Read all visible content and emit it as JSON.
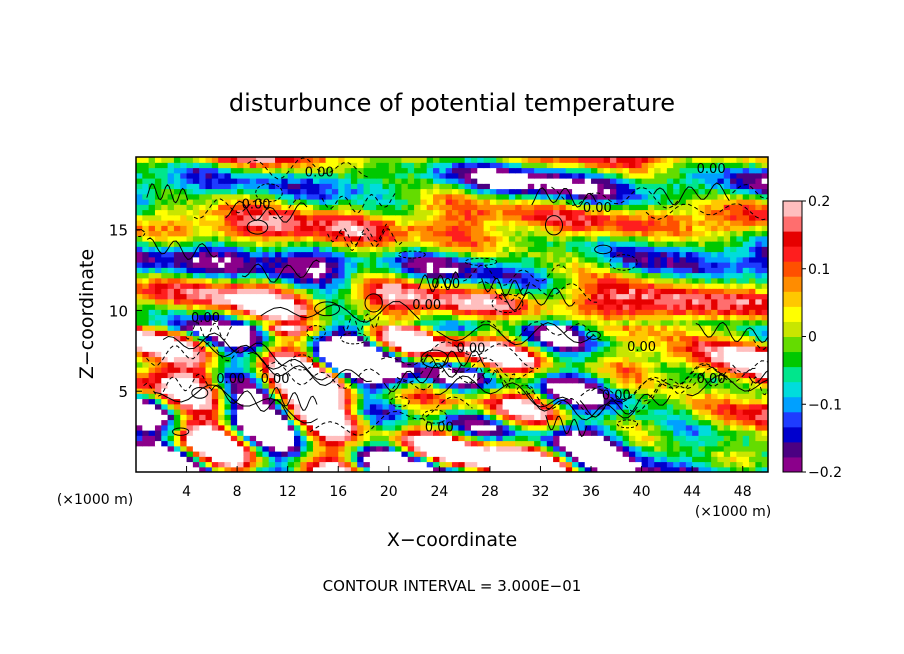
{
  "chart_data": {
    "type": "heatmap",
    "title": "disturbunce of potential temperature",
    "xlabel": "X−coordinate",
    "ylabel": "Z−coordinate",
    "x_unit": "(×1000 m)",
    "z_unit": "(×1000 m)",
    "x_ticks": [
      4,
      8,
      12,
      16,
      20,
      24,
      28,
      32,
      36,
      40,
      44,
      48
    ],
    "z_ticks": [
      5,
      10,
      15
    ],
    "xlim": [
      0,
      50
    ],
    "zlim": [
      0,
      19.5
    ],
    "colorbar": {
      "vmin": -0.2,
      "vmax": 0.2,
      "ticks": [
        {
          "value": 0.2,
          "label": "0.2"
        },
        {
          "value": 0.1,
          "label": "0.1"
        },
        {
          "value": 0,
          "label": "0"
        },
        {
          "value": -0.1,
          "label": "−0.1"
        },
        {
          "value": -0.2,
          "label": "−0.2"
        }
      ],
      "colors": [
        "#8b008b",
        "#4b0082",
        "#0000cd",
        "#1e3cff",
        "#00a0ff",
        "#00dcdc",
        "#00e68c",
        "#00c800",
        "#64dc00",
        "#c8e600",
        "#ffff00",
        "#ffc800",
        "#ff8c00",
        "#ff5000",
        "#ff1e1e",
        "#e60000",
        "#ff6e6e",
        "#ffbebe"
      ]
    },
    "contour_labels": [
      {
        "x": 9.5,
        "z": 16.3,
        "text": "0.00"
      },
      {
        "x": 14.5,
        "z": 18.3,
        "text": "0.00"
      },
      {
        "x": 45.5,
        "z": 18.5,
        "text": "0.00"
      },
      {
        "x": 36.5,
        "z": 16.1,
        "text": "0.00"
      },
      {
        "x": 24.5,
        "z": 11.4,
        "text": "0.00"
      },
      {
        "x": 23.0,
        "z": 10.1,
        "text": "0.00"
      },
      {
        "x": 5.5,
        "z": 9.3,
        "text": "0.00"
      },
      {
        "x": 26.5,
        "z": 7.4,
        "text": "0.00"
      },
      {
        "x": 40.0,
        "z": 7.5,
        "text": "0.00"
      },
      {
        "x": 7.5,
        "z": 5.5,
        "text": "0.00"
      },
      {
        "x": 11.0,
        "z": 5.5,
        "text": "0.00"
      },
      {
        "x": 45.5,
        "z": 5.5,
        "text": "0.00"
      },
      {
        "x": 38.0,
        "z": 4.5,
        "text": "0.00"
      },
      {
        "x": 24.0,
        "z": 2.5,
        "text": "0.00"
      }
    ],
    "grid": false
  },
  "footer": {
    "contour_interval": "CONTOUR INTERVAL = 3.000E−01"
  }
}
